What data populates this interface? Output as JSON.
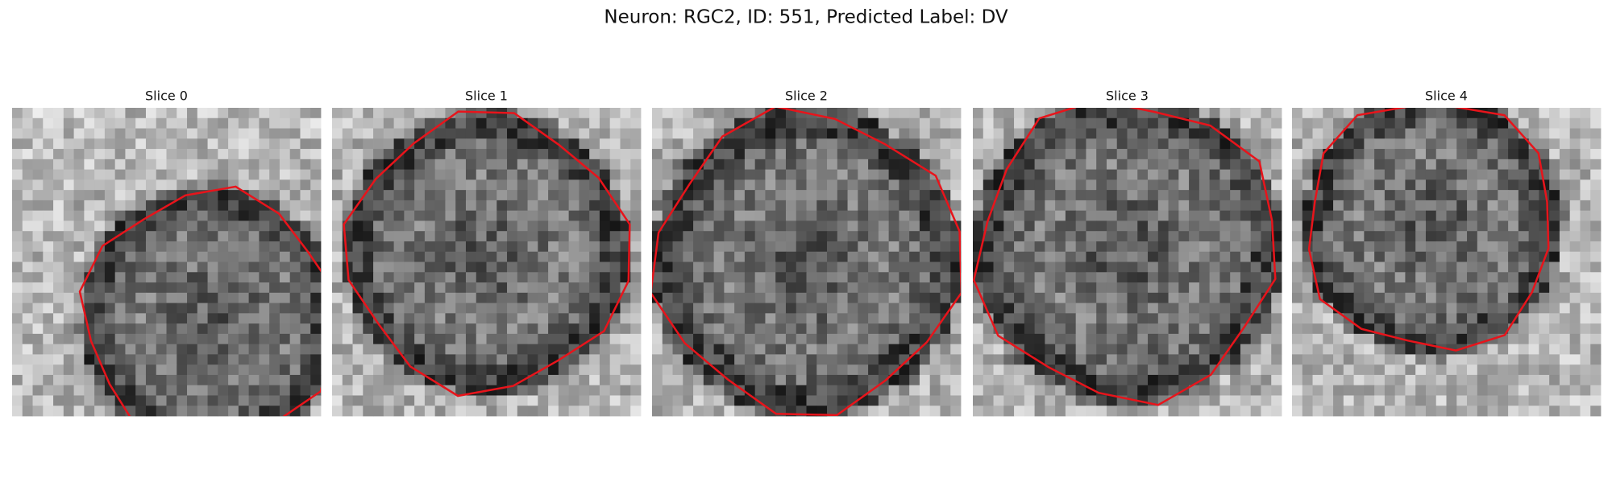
{
  "title": "Neuron: RGC2, ID: 551, Predicted Label: DV",
  "panels": [
    {
      "title": "Slice 0"
    },
    {
      "title": "Slice 1"
    },
    {
      "title": "Slice 2"
    },
    {
      "title": "Slice 3"
    },
    {
      "title": "Slice 4"
    }
  ]
}
